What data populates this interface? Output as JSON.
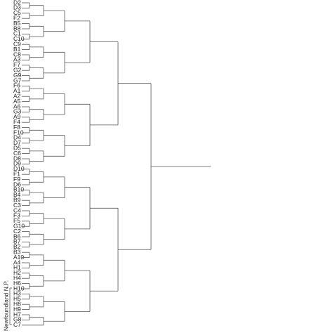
{
  "leaves": [
    "D2",
    "D3",
    "C5",
    "F2",
    "B5",
    "B8",
    "C1",
    "C10",
    "C9",
    "B1",
    "C8",
    "A3",
    "F7",
    "G2",
    "G9",
    "G7",
    "F6",
    "A1",
    "A2",
    "A5",
    "A6",
    "G3",
    "A9",
    "F4",
    "F8",
    "F10",
    "D4",
    "D7",
    "D5",
    "C6",
    "D8",
    "D9",
    "D10",
    "F1",
    "F9",
    "D6",
    "B10",
    "B4",
    "B9",
    "C3",
    "C4",
    "F3",
    "F5",
    "G10",
    "C2",
    "B6",
    "B7",
    "B2",
    "B3",
    "A10",
    "A4",
    "H1",
    "H2",
    "H4",
    "H6",
    "H10",
    "H3",
    "H5",
    "H8",
    "H9",
    "H7",
    "G8",
    "C7"
  ],
  "group_label": "Newfoundland N.P."
}
